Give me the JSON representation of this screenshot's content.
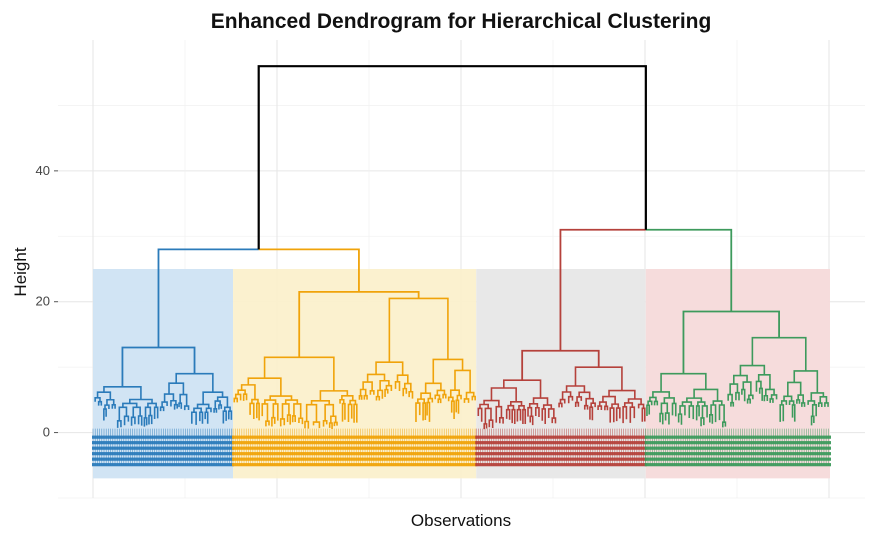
{
  "chart_data": {
    "type": "dendrogram",
    "title": "Enhanced Dendrogram for Hierarchical Clustering",
    "xlabel": "Observations",
    "ylabel": "Height",
    "y_ticks": [
      0,
      20,
      40
    ],
    "ylim": [
      -10,
      60
    ],
    "grid": true,
    "legend": "none",
    "colors": {
      "root_branch": "#000000",
      "cluster_blue": "#2b7bba",
      "cluster_orange": "#f0a30a",
      "cluster_red": "#b5413b",
      "cluster_green": "#3d9a5c",
      "rect_blue": "#cfe3f3",
      "rect_yellow": "#fbf0cc",
      "rect_gray": "#e7e7e7",
      "rect_pink": "#f5dada"
    },
    "cluster_rect_top": 25,
    "root": {
      "height": 56,
      "left_center": 0.24,
      "right_center": 0.76
    },
    "left_group": {
      "height": 28,
      "children": [
        "blue",
        "orange"
      ]
    },
    "right_group": {
      "height": 31,
      "children": [
        "red",
        "green"
      ]
    },
    "clusters": [
      {
        "key": "blue",
        "color": "#2b7bba",
        "rect_color": "#cfe3f3",
        "range": [
          0.0,
          0.19
        ],
        "top_height": 13,
        "sub": [
          {
            "range": [
              0.0,
              0.09
            ],
            "height": 7,
            "leaf_top": 3.5
          },
          {
            "range": [
              0.09,
              0.19
            ],
            "height": 9,
            "leaf_top": 3
          }
        ]
      },
      {
        "key": "orange",
        "color": "#f0a30a",
        "rect_color": "#fbf0cc",
        "range": [
          0.19,
          0.52
        ],
        "top_height": 21.5,
        "sub": [
          {
            "range": [
              0.19,
              0.36
            ],
            "height": 11.5,
            "leaf_top": 4
          },
          {
            "range": [
              0.36,
              0.52
            ],
            "height": 20.5,
            "leaf_top": 4.5
          }
        ]
      },
      {
        "key": "red",
        "color": "#b5413b",
        "rect_color": "#e7e7e7",
        "range": [
          0.52,
          0.75
        ],
        "top_height": 12.5,
        "sub": [
          {
            "range": [
              0.52,
              0.63
            ],
            "height": 8,
            "leaf_top": 3.5
          },
          {
            "range": [
              0.63,
              0.75
            ],
            "height": 10,
            "leaf_top": 3.5
          }
        ]
      },
      {
        "key": "green",
        "color": "#3d9a5c",
        "rect_color": "#f5dada",
        "range": [
          0.75,
          1.0
        ],
        "top_height": 18.5,
        "sub": [
          {
            "range": [
              0.75,
              0.86
            ],
            "height": 9,
            "leaf_top": 4
          },
          {
            "range": [
              0.86,
              1.0
            ],
            "height": 14.5,
            "leaf_top": 4
          }
        ]
      }
    ]
  }
}
